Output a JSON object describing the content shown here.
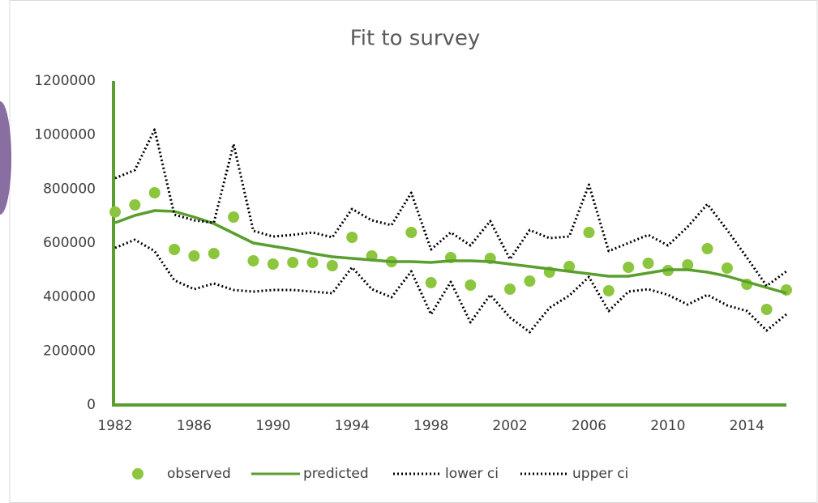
{
  "chart_data": {
    "type": "line",
    "title": "Fit to survey",
    "x": [
      1982,
      1983,
      1984,
      1985,
      1986,
      1987,
      1988,
      1989,
      1990,
      1991,
      1992,
      1993,
      1994,
      1995,
      1996,
      1997,
      1998,
      1999,
      2000,
      2001,
      2002,
      2003,
      2004,
      2005,
      2006,
      2007,
      2008,
      2009,
      2010,
      2011,
      2012,
      2013,
      2014,
      2015,
      2016
    ],
    "xlim": [
      1982,
      2016
    ],
    "xticks": [
      1982,
      1986,
      1990,
      1994,
      1998,
      2002,
      2006,
      2010,
      2014
    ],
    "ylim": [
      0,
      1200000
    ],
    "yticks": [
      0,
      200000,
      400000,
      600000,
      800000,
      1000000,
      1200000
    ],
    "grid": false,
    "legend": "bottom",
    "series": [
      {
        "name": "observed",
        "color": "#8cc63f",
        "mode": "markers",
        "values": [
          715000,
          741000,
          786000,
          576000,
          552000,
          561000,
          696000,
          534000,
          522000,
          528000,
          528000,
          516000,
          621000,
          552000,
          531000,
          639000,
          453000,
          546000,
          444000,
          543000,
          429000,
          459000,
          492000,
          513000,
          639000,
          423000,
          510000,
          525000,
          498000,
          519000,
          579000,
          507000,
          447000,
          354000,
          426000
        ]
      },
      {
        "name": "predicted",
        "color": "#5a9e2e",
        "mode": "line",
        "values": [
          675000,
          702000,
          720000,
          717000,
          696000,
          672000,
          636000,
          600000,
          588000,
          576000,
          561000,
          549000,
          543000,
          537000,
          531000,
          531000,
          528000,
          534000,
          534000,
          531000,
          522000,
          513000,
          504000,
          495000,
          486000,
          477000,
          477000,
          489000,
          501000,
          501000,
          492000,
          477000,
          456000,
          435000,
          414000
        ]
      },
      {
        "name": "lower ci",
        "color": "#000000",
        "mode": "dotted",
        "values": [
          582000,
          612000,
          570000,
          462000,
          429000,
          450000,
          426000,
          420000,
          426000,
          426000,
          420000,
          414000,
          510000,
          429000,
          399000,
          495000,
          336000,
          456000,
          306000,
          408000,
          324000,
          270000,
          360000,
          405000,
          474000,
          348000,
          420000,
          429000,
          408000,
          372000,
          408000,
          369000,
          348000,
          276000,
          336000
        ]
      },
      {
        "name": "upper ci",
        "color": "#000000",
        "mode": "dotted",
        "values": [
          840000,
          870000,
          1020000,
          705000,
          684000,
          675000,
          966000,
          645000,
          624000,
          630000,
          639000,
          621000,
          726000,
          684000,
          666000,
          786000,
          576000,
          639000,
          591000,
          681000,
          540000,
          648000,
          618000,
          624000,
          816000,
          570000,
          600000,
          630000,
          591000,
          660000,
          744000,
          648000,
          546000,
          441000,
          495000
        ]
      }
    ]
  }
}
